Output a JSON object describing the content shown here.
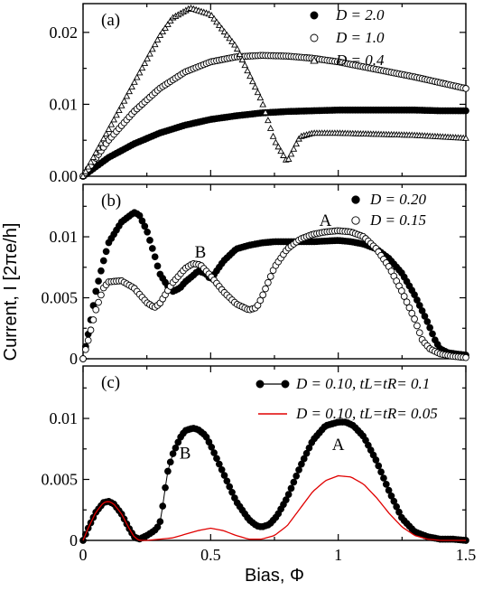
{
  "axis_labels": {
    "x": "Bias, Φ",
    "y": "Current, I [2πe/h]"
  },
  "chart_data": [
    {
      "type": "scatter",
      "panel_label": "(a)",
      "xlim": [
        0,
        1.5
      ],
      "ylim": [
        0,
        0.024
      ],
      "yticks": [
        "0.00",
        "0.01",
        "0.02"
      ],
      "ytick_values": [
        0,
        0.01,
        0.02
      ],
      "grid": false,
      "legend_placement": "top-right",
      "series": [
        {
          "name": "D = 2.0",
          "marker": "filled-circle",
          "x": [
            0,
            0.1,
            0.2,
            0.3,
            0.4,
            0.5,
            0.6,
            0.7,
            0.8,
            0.9,
            1.0,
            1.1,
            1.2,
            1.3,
            1.4,
            1.5
          ],
          "y": [
            0,
            0.0026,
            0.0045,
            0.006,
            0.0071,
            0.0079,
            0.0084,
            0.0088,
            0.009,
            0.0091,
            0.0092,
            0.0092,
            0.0092,
            0.0092,
            0.0091,
            0.0091
          ]
        },
        {
          "name": "D = 1.0",
          "marker": "open-circle",
          "x": [
            0,
            0.1,
            0.2,
            0.3,
            0.4,
            0.5,
            0.6,
            0.7,
            0.8,
            0.9,
            1.0,
            1.1,
            1.2,
            1.3,
            1.4,
            1.5
          ],
          "y": [
            0,
            0.005,
            0.009,
            0.0122,
            0.0145,
            0.0159,
            0.0166,
            0.0168,
            0.0167,
            0.0164,
            0.0159,
            0.0152,
            0.0145,
            0.0138,
            0.013,
            0.0122
          ]
        },
        {
          "name": "D = 0.4",
          "marker": "open-triangle",
          "x": [
            0,
            0.1,
            0.2,
            0.3,
            0.35,
            0.42,
            0.5,
            0.6,
            0.7,
            0.75,
            0.8,
            0.85,
            0.9,
            1.0,
            1.1,
            1.2,
            1.3,
            1.4,
            1.5
          ],
          "y": [
            0,
            0.0065,
            0.013,
            0.0195,
            0.022,
            0.0234,
            0.0225,
            0.018,
            0.0105,
            0.005,
            0.002,
            0.0055,
            0.006,
            0.006,
            0.0059,
            0.0058,
            0.0057,
            0.0055,
            0.0053
          ]
        }
      ]
    },
    {
      "type": "scatter",
      "panel_label": "(b)",
      "xlim": [
        0,
        1.5
      ],
      "ylim": [
        0,
        0.0143
      ],
      "yticks": [
        "0",
        "0.005",
        "0.01"
      ],
      "ytick_values": [
        0,
        0.005,
        0.01
      ],
      "grid": false,
      "legend_placement": "top-right",
      "annotations": [
        {
          "text": "A",
          "x": 0.95,
          "y": 0.0109
        },
        {
          "text": "B",
          "x": 0.46,
          "y": 0.0083
        }
      ],
      "series": [
        {
          "name": "D = 0.20",
          "marker": "filled-circle",
          "x": [
            0,
            0.02,
            0.05,
            0.08,
            0.1,
            0.15,
            0.2,
            0.22,
            0.25,
            0.28,
            0.3,
            0.33,
            0.35,
            0.38,
            0.4,
            0.43,
            0.45,
            0.48,
            0.5,
            0.55,
            0.6,
            0.65,
            0.7,
            0.75,
            0.8,
            0.9,
            1.0,
            1.05,
            1.1,
            1.15,
            1.2,
            1.25,
            1.3,
            1.35,
            1.38,
            1.4,
            1.43,
            1.46,
            1.5
          ],
          "y": [
            0,
            0.002,
            0.0055,
            0.008,
            0.0095,
            0.0112,
            0.012,
            0.0118,
            0.0105,
            0.0085,
            0.007,
            0.006,
            0.0055,
            0.0058,
            0.0063,
            0.0068,
            0.0072,
            0.007,
            0.0065,
            0.008,
            0.009,
            0.0093,
            0.0095,
            0.0096,
            0.0096,
            0.0096,
            0.0097,
            0.0096,
            0.0094,
            0.009,
            0.0082,
            0.007,
            0.0052,
            0.003,
            0.0015,
            0.0008,
            0.0005,
            0.0004,
            0.0003
          ]
        },
        {
          "name": "D = 0.15",
          "marker": "open-circle",
          "x": [
            0,
            0.02,
            0.05,
            0.08,
            0.1,
            0.15,
            0.2,
            0.25,
            0.28,
            0.3,
            0.35,
            0.4,
            0.43,
            0.46,
            0.5,
            0.55,
            0.6,
            0.65,
            0.68,
            0.7,
            0.75,
            0.8,
            0.85,
            0.9,
            0.95,
            1.0,
            1.05,
            1.1,
            1.15,
            1.2,
            1.25,
            1.3,
            1.33,
            1.36,
            1.4,
            1.45,
            1.5
          ],
          "y": [
            0,
            0.0015,
            0.004,
            0.0058,
            0.0063,
            0.0064,
            0.0058,
            0.0046,
            0.0042,
            0.0045,
            0.0062,
            0.0074,
            0.0078,
            0.0077,
            0.0068,
            0.0055,
            0.0045,
            0.004,
            0.0042,
            0.005,
            0.0075,
            0.009,
            0.0098,
            0.0102,
            0.0104,
            0.0105,
            0.0104,
            0.01,
            0.009,
            0.0075,
            0.0055,
            0.0032,
            0.0015,
            0.0008,
            0.0004,
            0.0002,
            0.0001
          ]
        }
      ]
    },
    {
      "type": "line",
      "panel_label": "(c)",
      "xlim": [
        0,
        1.5
      ],
      "ylim": [
        0,
        0.0143
      ],
      "yticks": [
        "0",
        "0.005",
        "0.01"
      ],
      "ytick_values": [
        0,
        0.005,
        0.01
      ],
      "xticks": [
        "0",
        "0.5",
        "1",
        "1.5"
      ],
      "xtick_values": [
        0,
        0.5,
        1,
        1.5
      ],
      "grid": false,
      "legend_placement": "top-right",
      "annotations": [
        {
          "text": "A",
          "x": 1.0,
          "y": 0.0074
        },
        {
          "text": "B",
          "x": 0.4,
          "y": 0.0067
        }
      ],
      "series": [
        {
          "name": "D = 0.10, tL=tR= 0.1",
          "marker": "filled-circle-line",
          "color": "#000000",
          "x": [
            0,
            0.02,
            0.05,
            0.08,
            0.1,
            0.12,
            0.15,
            0.18,
            0.2,
            0.22,
            0.25,
            0.28,
            0.3,
            0.31,
            0.32,
            0.33,
            0.35,
            0.38,
            0.4,
            0.43,
            0.45,
            0.48,
            0.5,
            0.55,
            0.6,
            0.65,
            0.68,
            0.7,
            0.73,
            0.76,
            0.8,
            0.85,
            0.9,
            0.95,
            1.0,
            1.03,
            1.06,
            1.1,
            1.15,
            1.2,
            1.25,
            1.3,
            1.35,
            1.4,
            1.45,
            1.5
          ],
          "y": [
            0,
            0.001,
            0.0023,
            0.0031,
            0.0032,
            0.003,
            0.0022,
            0.001,
            0.0003,
            0.0001,
            0.0004,
            0.0008,
            0.0013,
            0.0025,
            0.004,
            0.0055,
            0.007,
            0.0084,
            0.009,
            0.0092,
            0.0091,
            0.0086,
            0.0078,
            0.0055,
            0.0032,
            0.0017,
            0.0012,
            0.0011,
            0.0013,
            0.002,
            0.0035,
            0.006,
            0.0082,
            0.0094,
            0.0097,
            0.0097,
            0.0094,
            0.0085,
            0.0065,
            0.004,
            0.0018,
            0.0007,
            0.0003,
            0.0001,
            0.0001,
            0.0
          ]
        },
        {
          "name": "D = 0.10, tL=tR= 0.05",
          "marker": "line",
          "color": "#e00000",
          "x": [
            0,
            0.02,
            0.05,
            0.08,
            0.1,
            0.12,
            0.15,
            0.18,
            0.2,
            0.22,
            0.25,
            0.3,
            0.35,
            0.4,
            0.45,
            0.5,
            0.55,
            0.6,
            0.65,
            0.7,
            0.75,
            0.8,
            0.85,
            0.9,
            0.95,
            1.0,
            1.05,
            1.1,
            1.15,
            1.2,
            1.25,
            1.3,
            1.35,
            1.4,
            1.45,
            1.5
          ],
          "y": [
            0,
            0.001,
            0.0023,
            0.0031,
            0.0032,
            0.003,
            0.0022,
            0.001,
            0.0003,
            0.0,
            0.0,
            0.0001,
            0.0002,
            0.0005,
            0.0008,
            0.001,
            0.0008,
            0.0004,
            0.0001,
            0.0001,
            0.0004,
            0.0012,
            0.0026,
            0.004,
            0.0049,
            0.0053,
            0.0052,
            0.0046,
            0.0035,
            0.0022,
            0.0011,
            0.0004,
            0.0001,
            0.0,
            0.0,
            0.0
          ]
        }
      ]
    }
  ]
}
